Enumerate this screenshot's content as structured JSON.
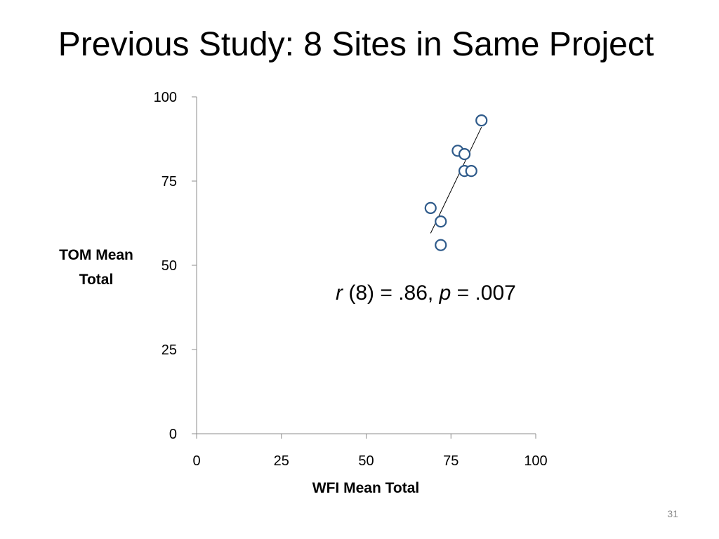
{
  "slide": {
    "title": "Previous Study: 8 Sites in Same Project",
    "number": "31"
  },
  "chart_data": {
    "type": "scatter",
    "title": "",
    "xlabel": "WFI Mean Total",
    "ylabel_lines": [
      "TOM Mean",
      "Total"
    ],
    "xlim": [
      0,
      100
    ],
    "ylim": [
      0,
      100
    ],
    "x_ticks": [
      0,
      25,
      50,
      75,
      100
    ],
    "y_ticks": [
      0,
      25,
      50,
      75,
      100
    ],
    "grid": false,
    "legend": "none",
    "marker_color": "#2e5a8a",
    "trendline": {
      "type": "linear",
      "x_range": [
        69,
        84
      ],
      "y_range": [
        59.5,
        91
      ]
    },
    "points": [
      {
        "x": 84,
        "y": 93
      },
      {
        "x": 77,
        "y": 84
      },
      {
        "x": 79,
        "y": 83
      },
      {
        "x": 79,
        "y": 78
      },
      {
        "x": 81,
        "y": 78
      },
      {
        "x": 69,
        "y": 67
      },
      {
        "x": 72,
        "y": 63
      },
      {
        "x": 72,
        "y": 56
      }
    ],
    "annotation": {
      "r": "r",
      "middle": " (8) = .86, ",
      "p": "p",
      "end": " = .007"
    }
  }
}
